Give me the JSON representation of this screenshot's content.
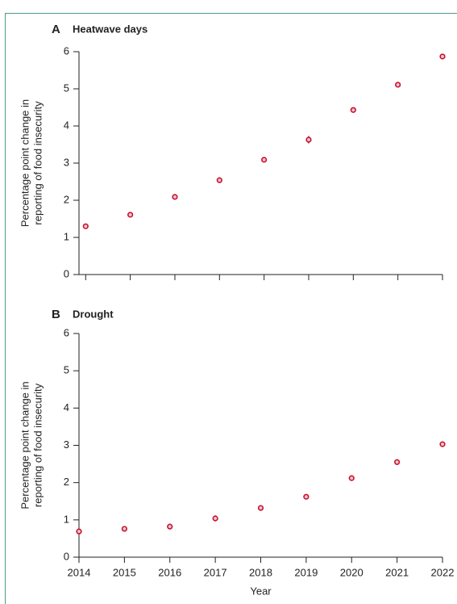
{
  "chart_data": [
    {
      "type": "scatter",
      "panel": "A",
      "title": "Heatwave days",
      "ylabel": [
        "Percentage point change in",
        "reporting of food insecurity"
      ],
      "x": [
        2014,
        2015,
        2016,
        2017,
        2018,
        2019,
        2020,
        2021,
        2022
      ],
      "values": [
        1.3,
        1.61,
        2.09,
        2.54,
        3.09,
        3.63,
        4.43,
        5.11,
        5.87
      ],
      "errors": [
        0.05,
        0.04,
        0.06,
        0.05,
        0.06,
        0.1,
        0.06,
        0.07,
        0.05
      ],
      "xlim": [
        2013.85,
        2022
      ],
      "xticks": [
        2014,
        2015,
        2016,
        2017,
        2018,
        2019,
        2020,
        2021,
        2022
      ],
      "ylim": [
        0,
        6
      ],
      "yticks": [
        0,
        1,
        2,
        3,
        4,
        5,
        6
      ],
      "color": "#c8102e"
    },
    {
      "type": "scatter",
      "panel": "B",
      "title": "Drought",
      "ylabel": [
        "Percentage point change in",
        "reporting of food insecurity"
      ],
      "xlabel": "Year",
      "x": [
        2014,
        2015,
        2016,
        2017,
        2018,
        2019,
        2020,
        2021,
        2022
      ],
      "values": [
        0.69,
        0.76,
        0.82,
        1.04,
        1.32,
        1.62,
        2.12,
        2.55,
        3.03
      ],
      "errors": [
        0.08,
        0.06,
        0.05,
        0.08,
        0.07,
        0.05,
        0.06,
        0.05,
        0.06
      ],
      "xlim": [
        2014,
        2022
      ],
      "xticks": [
        2014,
        2015,
        2016,
        2017,
        2018,
        2019,
        2020,
        2021,
        2022
      ],
      "ylim": [
        0,
        6
      ],
      "yticks": [
        0,
        1,
        2,
        3,
        4,
        5,
        6
      ],
      "color": "#c8102e"
    }
  ]
}
